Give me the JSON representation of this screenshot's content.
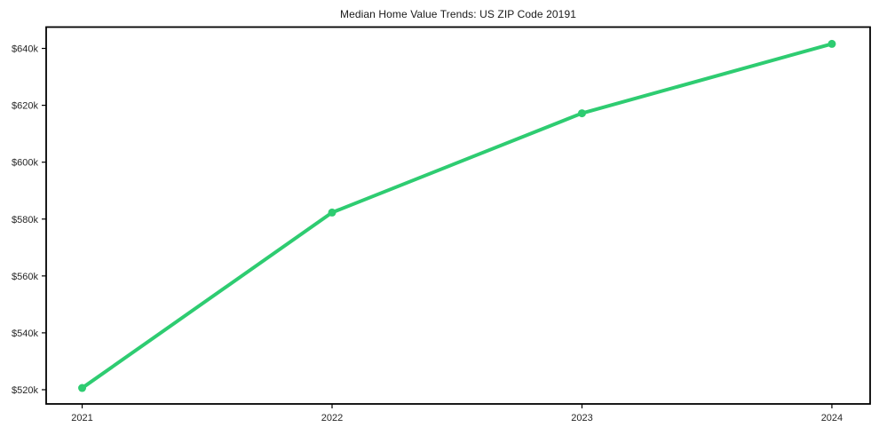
{
  "chart_data": {
    "type": "line",
    "title": "Median Home Value Trends: US ZIP Code 20191",
    "series": [
      {
        "name": "median-home-value",
        "x": [
          2021,
          2022,
          2023,
          2024
        ],
        "values": [
          520600,
          582300,
          617200,
          641600
        ]
      }
    ],
    "x_ticks": [
      2021,
      2022,
      2023,
      2024
    ],
    "x_tick_labels": [
      "2021",
      "2022",
      "2023",
      "2024"
    ],
    "y_ticks": [
      520000,
      540000,
      560000,
      580000,
      600000,
      620000,
      640000
    ],
    "y_tick_labels": [
      "$520k",
      "$540k",
      "$560k",
      "$580k",
      "$600k",
      "$620k",
      "$640k"
    ],
    "xlim": [
      2020.856,
      2024.153
    ],
    "ylim": [
      515000,
      647500
    ],
    "xlabel": "",
    "ylabel": "",
    "grid": false,
    "legend": "none",
    "colors": {
      "line": "#2ecc71",
      "marker": "#2ecc71",
      "spine": "#000000",
      "tick": "#000000",
      "tick_text": "#262626",
      "title_text": "#1a1a1a",
      "background": "#ffffff"
    }
  }
}
